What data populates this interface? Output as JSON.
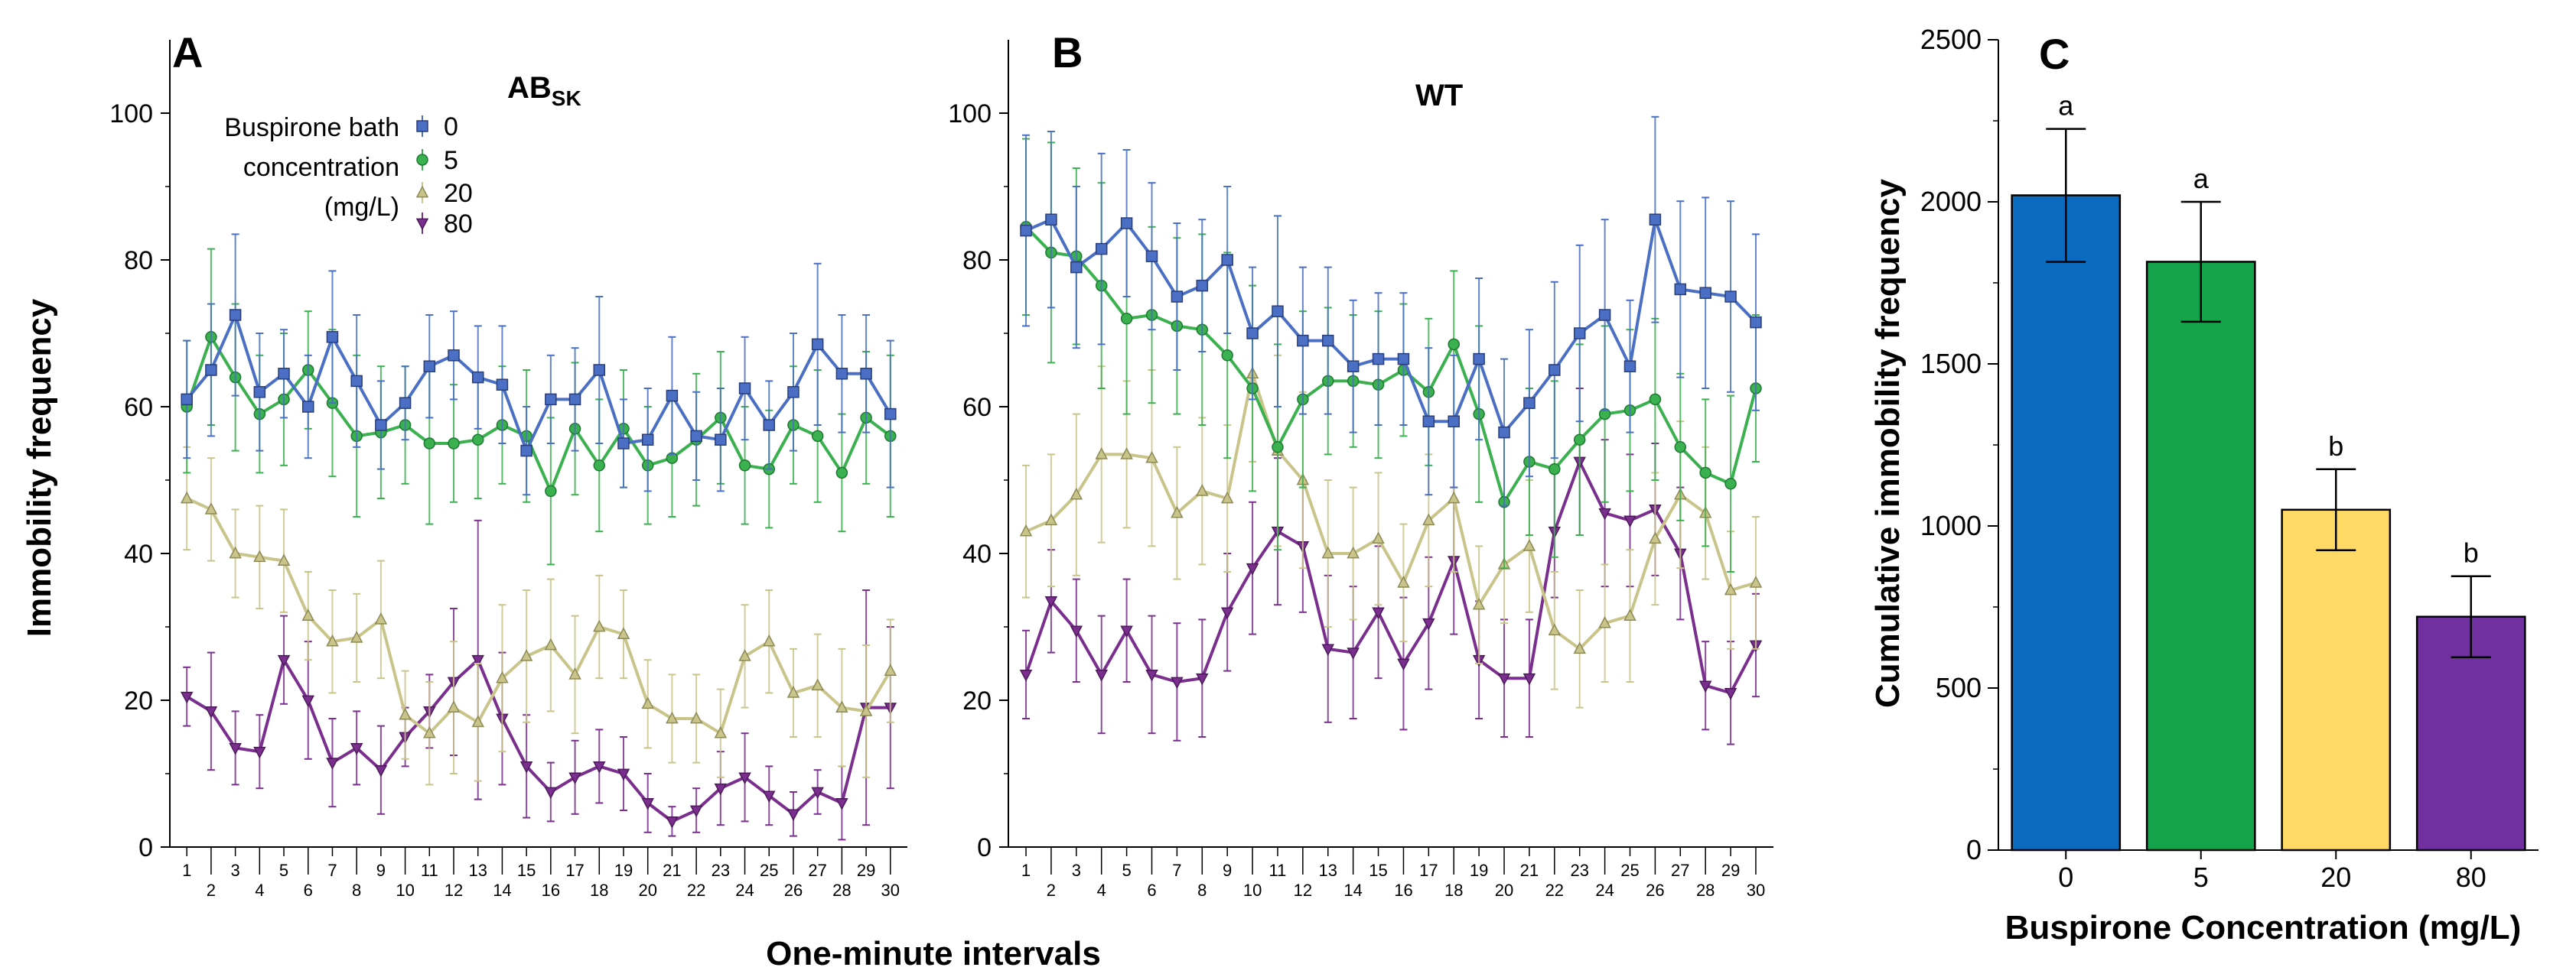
{
  "figure": {
    "x_axis_shared_label": "One-minute intervals"
  },
  "chart_data": [
    {
      "panel": "A",
      "type": "line",
      "title": "AB",
      "title_subscript": "SK",
      "xlabel": "One-minute intervals",
      "ylabel": "Immobility frequency",
      "xlim": [
        1,
        30
      ],
      "ylim": [
        0,
        110
      ],
      "yticks": [
        0,
        20,
        40,
        60,
        80,
        100
      ],
      "xticks": [
        1,
        2,
        3,
        4,
        5,
        6,
        7,
        8,
        9,
        10,
        11,
        12,
        13,
        14,
        15,
        16,
        17,
        18,
        19,
        20,
        21,
        22,
        23,
        24,
        25,
        26,
        27,
        28,
        29,
        30
      ],
      "legend": {
        "title_lines": [
          "Buspirone bath",
          "concentration",
          "(mg/L)"
        ],
        "entries": [
          "0",
          "5",
          "20",
          "80"
        ]
      },
      "series": [
        {
          "name": "0",
          "color": "#4A6FC4",
          "marker": "square",
          "values": [
            61,
            65,
            72.5,
            62,
            64.5,
            60,
            69.5,
            63.5,
            57.5,
            60.5,
            65.5,
            67,
            64,
            63,
            54,
            61,
            61,
            65,
            55,
            55.5,
            61.5,
            56,
            55.5,
            62.5,
            57.5,
            62,
            68.5,
            64.5,
            64.5,
            59
          ],
          "error": [
            8,
            9,
            11,
            8,
            6,
            7,
            9,
            9,
            6,
            5,
            7,
            6,
            7,
            8,
            6,
            6,
            7,
            10,
            6,
            7,
            8,
            6,
            7,
            7,
            6,
            8,
            11,
            8,
            8,
            10
          ]
        },
        {
          "name": "5",
          "color": "#3BB04F",
          "marker": "circle",
          "values": [
            60,
            69.5,
            64,
            59,
            61,
            65,
            60.5,
            56,
            56.5,
            57.5,
            55,
            55,
            55.5,
            57.5,
            56,
            48.5,
            57,
            52,
            57,
            52,
            53,
            55.5,
            58.5,
            52,
            51.5,
            57.5,
            56,
            51,
            58.5,
            56
          ],
          "error": [
            9,
            12,
            10,
            8,
            9,
            8,
            10,
            11,
            9,
            8,
            11,
            8,
            8,
            8,
            9,
            10,
            9,
            9,
            8,
            8,
            8,
            9,
            9,
            8,
            8,
            8,
            9,
            8,
            9,
            11
          ]
        },
        {
          "name": "20",
          "color": "#C9C48A",
          "marker": "triangle",
          "values": [
            47.5,
            46,
            40,
            39.5,
            39,
            31.5,
            28,
            28.5,
            31,
            18,
            15.5,
            19,
            17,
            23,
            26,
            27.5,
            23.5,
            30,
            29,
            19.5,
            17.5,
            17.5,
            15.5,
            26,
            28,
            21,
            22,
            19,
            18.5,
            24
          ],
          "error": [
            7,
            7,
            6,
            7,
            7,
            6,
            7,
            6,
            8,
            6,
            7,
            9,
            8,
            10,
            9,
            9,
            8,
            7,
            6,
            6,
            6,
            6,
            6,
            7,
            7,
            6,
            7,
            8,
            9,
            7
          ]
        },
        {
          "name": "80",
          "color": "#7A2F8E",
          "marker": "downtriangle",
          "values": [
            20.5,
            18.5,
            13.5,
            13,
            25.5,
            20,
            11.5,
            13.5,
            10.5,
            15,
            18.5,
            22.5,
            25.5,
            17.5,
            11,
            7.5,
            9.5,
            11,
            10,
            6,
            3.5,
            5,
            8,
            9.5,
            7,
            4.5,
            7.5,
            6,
            19,
            19
          ],
          "error": [
            4,
            8,
            5,
            5,
            6,
            8,
            6,
            5,
            6,
            4,
            5,
            10,
            19,
            9,
            7,
            4,
            5,
            5,
            5,
            4,
            2,
            3,
            5,
            6,
            4,
            3,
            3,
            5,
            16,
            11
          ]
        }
      ]
    },
    {
      "panel": "B",
      "type": "line",
      "title": "WT",
      "xlabel": "One-minute intervals",
      "ylabel": "",
      "xlim": [
        1,
        30
      ],
      "ylim": [
        0,
        110
      ],
      "yticks": [
        0,
        20,
        40,
        60,
        80,
        100
      ],
      "xticks": [
        1,
        2,
        3,
        4,
        5,
        6,
        7,
        8,
        9,
        10,
        11,
        12,
        13,
        14,
        15,
        16,
        17,
        18,
        19,
        20,
        21,
        22,
        23,
        24,
        25,
        26,
        27,
        28,
        29,
        30
      ],
      "series": [
        {
          "name": "0",
          "color": "#4A6FC4",
          "marker": "square",
          "values": [
            84,
            85.5,
            79,
            81.5,
            85,
            80.5,
            75,
            76.5,
            80,
            70,
            73,
            69,
            69,
            65.5,
            66.5,
            66.5,
            58,
            58,
            66.5,
            56.5,
            60.5,
            65,
            70,
            72.5,
            65.5,
            85.5,
            76,
            75.5,
            75,
            71.5
          ],
          "error": [
            13,
            12,
            11,
            13,
            10,
            10,
            10,
            9,
            10,
            9,
            13,
            10,
            10,
            9,
            9,
            9,
            10,
            9,
            11,
            10,
            10,
            12,
            12,
            13,
            9,
            14,
            12,
            13,
            13,
            12
          ]
        },
        {
          "name": "5",
          "color": "#3BB04F",
          "marker": "circle",
          "values": [
            84.5,
            81,
            80.5,
            76.5,
            72,
            72.5,
            71,
            70.5,
            67,
            62.5,
            54.5,
            61,
            63.5,
            63.5,
            63,
            65,
            62,
            68.5,
            59,
            47,
            52.5,
            51.5,
            55.5,
            59,
            59.5,
            61,
            54.5,
            51,
            49.5,
            62.5
          ],
          "error": [
            12,
            15,
            12,
            14,
            13,
            12,
            12,
            13,
            14,
            14,
            14,
            12,
            10,
            9,
            10,
            9,
            10,
            10,
            12,
            9,
            10,
            12,
            13,
            12,
            11,
            11,
            10,
            10,
            12,
            10
          ]
        },
        {
          "name": "20",
          "color": "#C9C48A",
          "marker": "triangle",
          "values": [
            43,
            44.5,
            48,
            53.5,
            53.5,
            53,
            45.5,
            48.5,
            47.5,
            64.5,
            54,
            50,
            40,
            40,
            42,
            36,
            44.5,
            47.5,
            33,
            38.5,
            41,
            29.5,
            27,
            30.5,
            31.5,
            42,
            48,
            45.5,
            35,
            36
          ],
          "error": [
            9,
            9,
            11,
            12,
            10,
            12,
            9,
            10,
            10,
            12,
            13,
            12,
            10,
            9,
            9,
            8,
            9,
            10,
            8,
            8,
            9,
            8,
            8,
            8,
            9,
            9,
            10,
            9,
            8,
            9
          ]
        },
        {
          "name": "80",
          "color": "#7A2F8E",
          "marker": "downtriangle",
          "values": [
            23.5,
            33.5,
            29.5,
            23.5,
            29.5,
            23.5,
            22.5,
            23,
            32,
            38,
            43,
            41,
            27,
            26.5,
            32,
            25,
            30.5,
            39,
            25.5,
            23,
            23,
            43,
            52.5,
            45.5,
            44.5,
            46,
            40,
            22,
            21,
            27.5
          ],
          "error": [
            6,
            7,
            7,
            8,
            7,
            8,
            8,
            8,
            8,
            9,
            10,
            9,
            10,
            9,
            9,
            9,
            9,
            10,
            8,
            8,
            8,
            9,
            10,
            10,
            9,
            9,
            9,
            6,
            7,
            7
          ]
        }
      ]
    },
    {
      "panel": "C",
      "type": "bar",
      "categories": [
        "0",
        "5",
        "20",
        "80"
      ],
      "values": [
        2020,
        1815,
        1050,
        720
      ],
      "error": [
        205,
        185,
        125,
        125
      ],
      "colors": [
        "#0B6BBE",
        "#14A24A",
        "#FFD965",
        "#7030A0"
      ],
      "significance": [
        "a",
        "a",
        "b",
        "b"
      ],
      "xlabel": "Buspirone Concentration (mg/L)",
      "ylabel": "Cumulative immobility frequency",
      "ylim": [
        0,
        2500
      ],
      "yticks": [
        0,
        500,
        1000,
        1500,
        2000,
        2500
      ]
    }
  ]
}
